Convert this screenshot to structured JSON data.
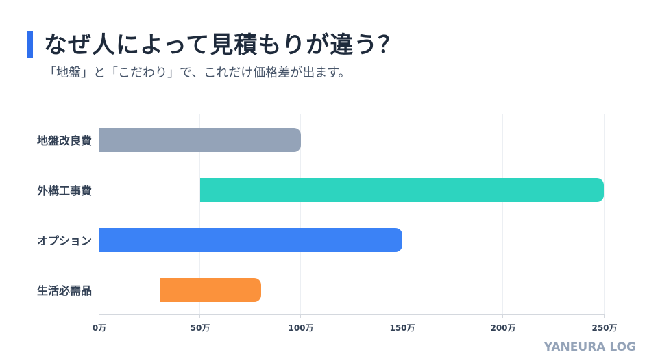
{
  "header": {
    "title": "なぜ人によって見積もりが違う？",
    "subtitle": "「地盤」と「こだわり」で、これだけ価格差が出ます。",
    "accent_color": "#2f6fed"
  },
  "brand": "YANEURA LOG",
  "chart_data": {
    "type": "bar",
    "orientation": "horizontal",
    "subtype": "floating-range",
    "title": "なぜ人によって見積もりが違う？",
    "subtitle": "「地盤」と「こだわり」で、これだけ価格差が出ます。",
    "xlabel": "",
    "ylabel": "",
    "unit": "万",
    "xlim": [
      0,
      250
    ],
    "grid": true,
    "legend": false,
    "x_ticks": [
      "0万",
      "50万",
      "100万",
      "150万",
      "200万",
      "250万"
    ],
    "x_tick_values": [
      0,
      50,
      100,
      150,
      200,
      250
    ],
    "categories": [
      "地盤改良費",
      "外構工事費",
      "オプション",
      "生活必需品"
    ],
    "series": [
      {
        "name": "min",
        "values": [
          0,
          50,
          0,
          30
        ]
      },
      {
        "name": "max",
        "values": [
          100,
          250,
          150,
          80
        ]
      }
    ],
    "colors": [
      "#94a3b8",
      "#2dd4bf",
      "#3b82f6",
      "#fb923c"
    ]
  }
}
